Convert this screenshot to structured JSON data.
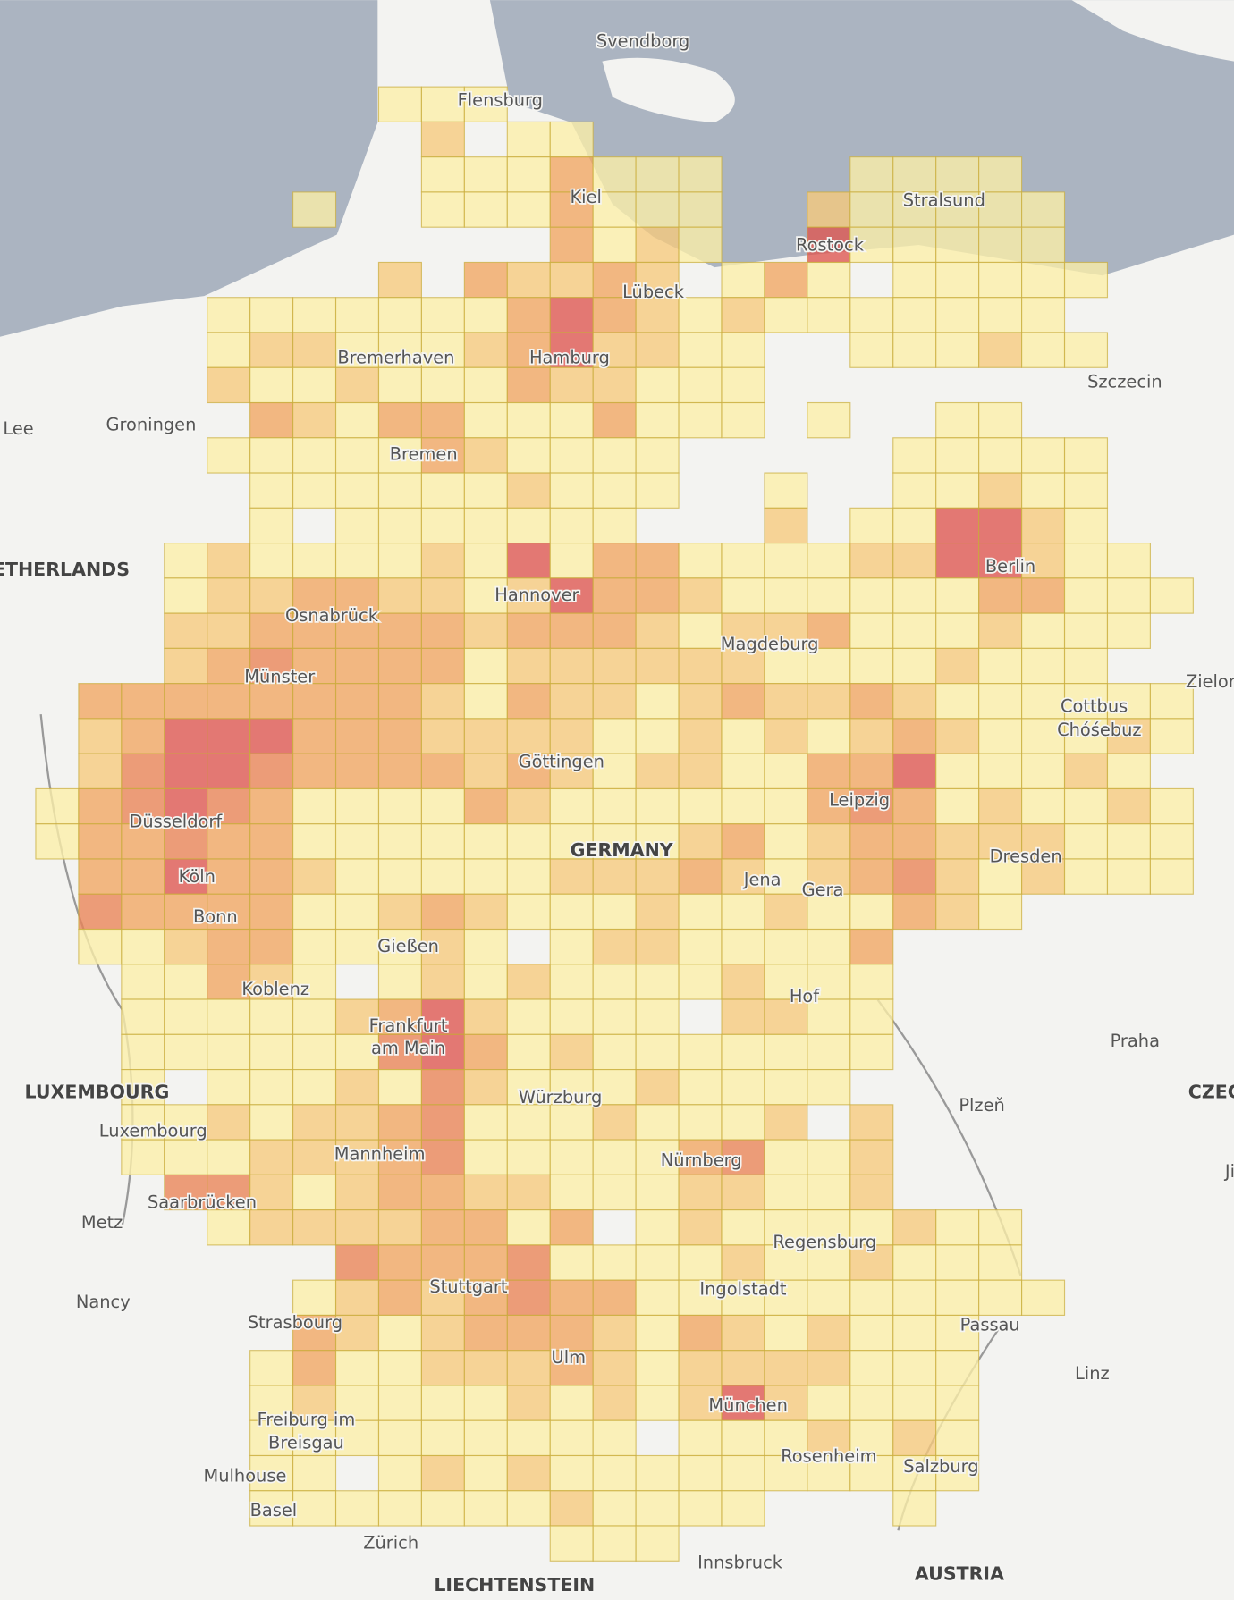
{
  "map": {
    "level_colors": [
      "#fbeea8",
      "#f6c97c",
      "#f1a561",
      "#e98356",
      "#de5550"
    ],
    "levels": [
      [
        null,
        null,
        null,
        null,
        null,
        null,
        null,
        null,
        1,
        1,
        1
      ],
      [
        null,
        null,
        null,
        null,
        null,
        null,
        null,
        null,
        null,
        2,
        null,
        1,
        1
      ],
      [
        null,
        null,
        null,
        null,
        null,
        null,
        null,
        null,
        null,
        1,
        1,
        1,
        3,
        1,
        1,
        1,
        null,
        null,
        null,
        1,
        1,
        1,
        1
      ],
      [
        null,
        null,
        null,
        null,
        null,
        null,
        1,
        null,
        null,
        1,
        1,
        1,
        3,
        1,
        1,
        1,
        null,
        null,
        2,
        1,
        1,
        1,
        1,
        1
      ],
      [
        null,
        null,
        null,
        null,
        null,
        null,
        null,
        null,
        null,
        null,
        null,
        null,
        3,
        1,
        2,
        1,
        null,
        null,
        5,
        1,
        1,
        1,
        1,
        1
      ],
      [
        null,
        null,
        null,
        null,
        null,
        null,
        null,
        null,
        2,
        null,
        3,
        2,
        2,
        3,
        2,
        null,
        1,
        3,
        1,
        null,
        1,
        1,
        1,
        1,
        1
      ],
      [
        null,
        null,
        null,
        null,
        1,
        1,
        1,
        1,
        1,
        1,
        1,
        3,
        5,
        3,
        2,
        1,
        2,
        1,
        1,
        1,
        1,
        1,
        1,
        1
      ],
      [
        null,
        null,
        null,
        null,
        1,
        2,
        2,
        1,
        1,
        1,
        2,
        3,
        5,
        2,
        2,
        1,
        1,
        null,
        null,
        1,
        1,
        1,
        2,
        1,
        1
      ],
      [
        null,
        null,
        null,
        null,
        2,
        1,
        1,
        2,
        1,
        1,
        1,
        3,
        2,
        2,
        1,
        1,
        1
      ],
      [
        null,
        null,
        null,
        null,
        null,
        3,
        2,
        1,
        3,
        3,
        1,
        1,
        1,
        3,
        1,
        1,
        1,
        null,
        1,
        null,
        null,
        1,
        1
      ],
      [
        null,
        null,
        null,
        null,
        1,
        1,
        1,
        1,
        1,
        3,
        2,
        1,
        1,
        1,
        1,
        null,
        null,
        null,
        null,
        null,
        1,
        1,
        1,
        1,
        1
      ],
      [
        null,
        null,
        null,
        null,
        null,
        1,
        1,
        1,
        1,
        1,
        1,
        2,
        1,
        1,
        1,
        null,
        null,
        1,
        null,
        null,
        1,
        1,
        2,
        1,
        1
      ],
      [
        null,
        null,
        null,
        null,
        null,
        1,
        null,
        1,
        1,
        1,
        1,
        1,
        1,
        1,
        null,
        null,
        null,
        2,
        null,
        1,
        1,
        5,
        5,
        2,
        1
      ],
      [
        null,
        null,
        null,
        1,
        2,
        1,
        1,
        1,
        1,
        2,
        1,
        5,
        1,
        3,
        3,
        1,
        1,
        1,
        1,
        2,
        2,
        5,
        5,
        2,
        1,
        1
      ],
      [
        null,
        null,
        null,
        1,
        2,
        2,
        3,
        3,
        2,
        2,
        1,
        2,
        5,
        3,
        3,
        2,
        1,
        1,
        1,
        1,
        1,
        1,
        3,
        3,
        1,
        1,
        1
      ],
      [
        null,
        null,
        null,
        2,
        2,
        3,
        3,
        3,
        3,
        3,
        2,
        3,
        3,
        3,
        2,
        1,
        2,
        2,
        3,
        1,
        1,
        1,
        2,
        1,
        1,
        1
      ],
      [
        null,
        null,
        null,
        2,
        3,
        4,
        3,
        3,
        3,
        3,
        1,
        2,
        2,
        2,
        2,
        2,
        2,
        1,
        1,
        1,
        1,
        2,
        1,
        1,
        1
      ],
      [
        null,
        3,
        3,
        3,
        3,
        3,
        3,
        3,
        3,
        2,
        1,
        3,
        2,
        2,
        1,
        2,
        3,
        2,
        2,
        3,
        2,
        1,
        1,
        1,
        1,
        1,
        1
      ],
      [
        null,
        2,
        3,
        5,
        5,
        5,
        3,
        3,
        3,
        2,
        2,
        2,
        2,
        1,
        1,
        2,
        1,
        2,
        1,
        2,
        3,
        2,
        1,
        1,
        1,
        2,
        1
      ],
      [
        null,
        2,
        4,
        5,
        5,
        4,
        3,
        3,
        3,
        3,
        2,
        3,
        2,
        1,
        2,
        2,
        1,
        1,
        3,
        3,
        5,
        1,
        1,
        1,
        2,
        1
      ],
      [
        1,
        3,
        4,
        5,
        4,
        3,
        1,
        1,
        1,
        1,
        3,
        2,
        1,
        1,
        1,
        1,
        1,
        1,
        3,
        4,
        3,
        1,
        2,
        1,
        1,
        2,
        1
      ],
      [
        1,
        3,
        3,
        4,
        3,
        3,
        1,
        1,
        1,
        1,
        1,
        1,
        1,
        1,
        1,
        2,
        3,
        1,
        2,
        3,
        3,
        2,
        2,
        2,
        1,
        1,
        1
      ],
      [
        null,
        3,
        3,
        5,
        3,
        3,
        2,
        1,
        1,
        1,
        1,
        1,
        2,
        2,
        2,
        3,
        2,
        1,
        2,
        3,
        4,
        2,
        1,
        2,
        1,
        1,
        1
      ],
      [
        null,
        4,
        3,
        3,
        3,
        3,
        1,
        1,
        2,
        3,
        2,
        1,
        1,
        1,
        2,
        1,
        1,
        2,
        1,
        1,
        3,
        2,
        1
      ],
      [
        null,
        1,
        1,
        2,
        3,
        3,
        1,
        1,
        1,
        2,
        1,
        null,
        1,
        2,
        2,
        1,
        1,
        1,
        1,
        3
      ],
      [
        null,
        null,
        1,
        1,
        3,
        2,
        1,
        null,
        1,
        2,
        1,
        2,
        1,
        1,
        1,
        1,
        2,
        1,
        1,
        1
      ],
      [
        null,
        null,
        1,
        1,
        1,
        1,
        1,
        2,
        3,
        5,
        2,
        1,
        1,
        1,
        1,
        null,
        2,
        2,
        1,
        1
      ],
      [
        null,
        null,
        1,
        1,
        1,
        1,
        1,
        1,
        4,
        5,
        3,
        1,
        2,
        1,
        1,
        1,
        1,
        1,
        1,
        1
      ],
      [
        null,
        null,
        1,
        null,
        1,
        1,
        1,
        2,
        1,
        4,
        2,
        1,
        1,
        1,
        2,
        1,
        1,
        1,
        1
      ],
      [
        null,
        null,
        1,
        1,
        2,
        1,
        2,
        2,
        3,
        4,
        1,
        1,
        1,
        2,
        1,
        1,
        1,
        2,
        null,
        2
      ],
      [
        null,
        null,
        1,
        1,
        1,
        2,
        2,
        2,
        3,
        4,
        1,
        1,
        1,
        1,
        1,
        3,
        4,
        1,
        1,
        2
      ],
      [
        null,
        null,
        null,
        4,
        4,
        2,
        1,
        2,
        3,
        3,
        2,
        2,
        1,
        1,
        1,
        2,
        2,
        1,
        1,
        2
      ],
      [
        null,
        null,
        null,
        null,
        1,
        2,
        2,
        2,
        2,
        3,
        3,
        1,
        3,
        null,
        1,
        2,
        1,
        1,
        1,
        1,
        2,
        1,
        1
      ],
      [
        null,
        null,
        null,
        null,
        null,
        null,
        null,
        4,
        3,
        3,
        3,
        4,
        1,
        1,
        1,
        1,
        2,
        1,
        1,
        2,
        1,
        1,
        1
      ],
      [
        null,
        null,
        null,
        null,
        null,
        null,
        1,
        2,
        3,
        2,
        3,
        4,
        3,
        3,
        1,
        1,
        1,
        1,
        1,
        1,
        1,
        1,
        1,
        1
      ],
      [
        null,
        null,
        null,
        null,
        null,
        null,
        3,
        2,
        1,
        2,
        3,
        3,
        3,
        2,
        1,
        3,
        2,
        1,
        2,
        1,
        1,
        1
      ],
      [
        null,
        null,
        null,
        null,
        null,
        1,
        3,
        1,
        1,
        2,
        2,
        2,
        3,
        2,
        1,
        2,
        2,
        2,
        2,
        1,
        1,
        1
      ],
      [
        null,
        null,
        null,
        null,
        null,
        1,
        2,
        1,
        1,
        1,
        1,
        2,
        1,
        2,
        1,
        2,
        5,
        2,
        1,
        1,
        1,
        1
      ],
      [
        null,
        null,
        null,
        null,
        null,
        1,
        1,
        1,
        1,
        1,
        1,
        1,
        1,
        1,
        null,
        1,
        1,
        1,
        2,
        1,
        2,
        1
      ],
      [
        null,
        null,
        null,
        null,
        null,
        1,
        1,
        null,
        1,
        2,
        1,
        2,
        1,
        1,
        1,
        1,
        1,
        1,
        1,
        1,
        1,
        1
      ],
      [
        null,
        null,
        null,
        null,
        null,
        1,
        1,
        1,
        1,
        1,
        1,
        1,
        2,
        1,
        1,
        1,
        1,
        null,
        null,
        null,
        1
      ],
      [
        null,
        null,
        null,
        null,
        null,
        null,
        null,
        null,
        null,
        null,
        null,
        null,
        1,
        1,
        1
      ]
    ],
    "labels": [
      "Svendborg",
      "Flensburg",
      "Kiel",
      "Stralsund",
      "Rostock",
      "Lübeck",
      "Bremerhaven",
      "Hamburg",
      "Szczecin",
      "Groningen",
      "Lee",
      "Bremen",
      "ETHERLANDS",
      "Hannover",
      "Berlin",
      "Osnabrück",
      "Magdeburg",
      "Münster",
      "Zielon",
      "Cottbus",
      "Chóśebuz",
      "Göttingen",
      "Leipzig",
      "Düsseldorf",
      "GERMANY",
      "Dresden",
      "Köln",
      "Jena",
      "Gera",
      "Bonn",
      "Gießen",
      "Koblenz",
      "Hof",
      "Frankfurt",
      "am Main",
      "Praha",
      "LUXEMBOURG",
      "Würzburg",
      "Plzeň",
      "CZEC",
      "Luxembourg",
      "Mannheim",
      "Nürnberg",
      "Ji",
      "Saarbrücken",
      "Metz",
      "Regensburg",
      "Stuttgart",
      "Ingolstadt",
      "Nancy",
      "Strasbourg",
      "Passau",
      "Ulm",
      "Linz",
      "München",
      "Freiburg im",
      "Breisgau",
      "Rosenheim",
      "Salzburg",
      "Mulhouse",
      "Basel",
      "Zürich",
      "Innsbruck",
      "AUSTRIA",
      "LIECHTENSTEIN"
    ]
  }
}
